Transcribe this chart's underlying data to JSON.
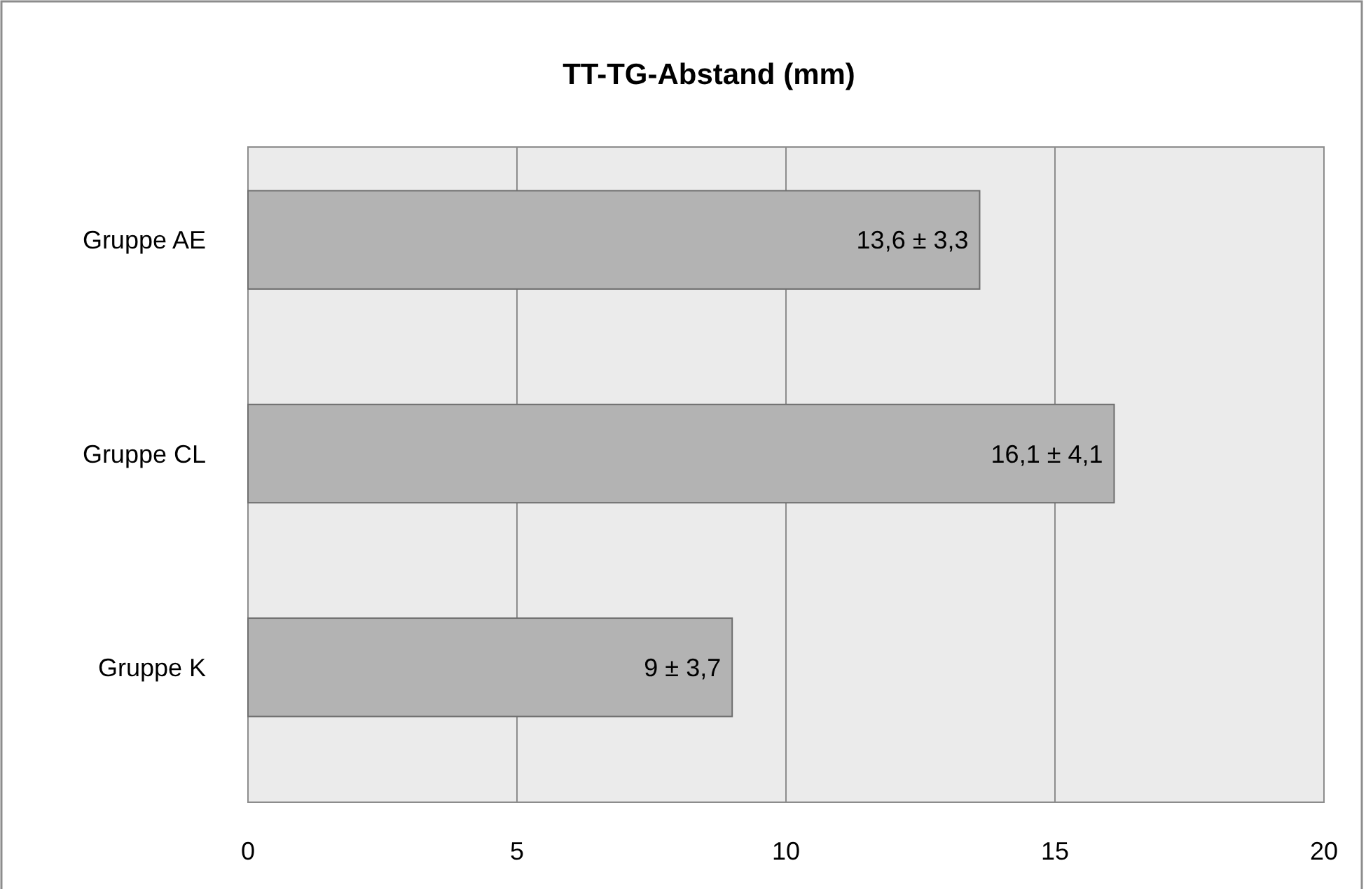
{
  "chart_data": {
    "type": "bar",
    "orientation": "horizontal",
    "title": "TT-TG-Abstand (mm)",
    "categories": [
      "Gruppe AE",
      "Gruppe CL",
      "Gruppe K"
    ],
    "values": [
      13.6,
      16.1,
      9
    ],
    "value_labels": [
      "13,6 ± 3,3",
      "16,1 ± 4,1",
      "9 ± 3,7"
    ],
    "color": "#b3b3b3",
    "xlim": [
      0,
      20
    ],
    "xticks": [
      0,
      5,
      10,
      15,
      20
    ],
    "grid": "x"
  }
}
